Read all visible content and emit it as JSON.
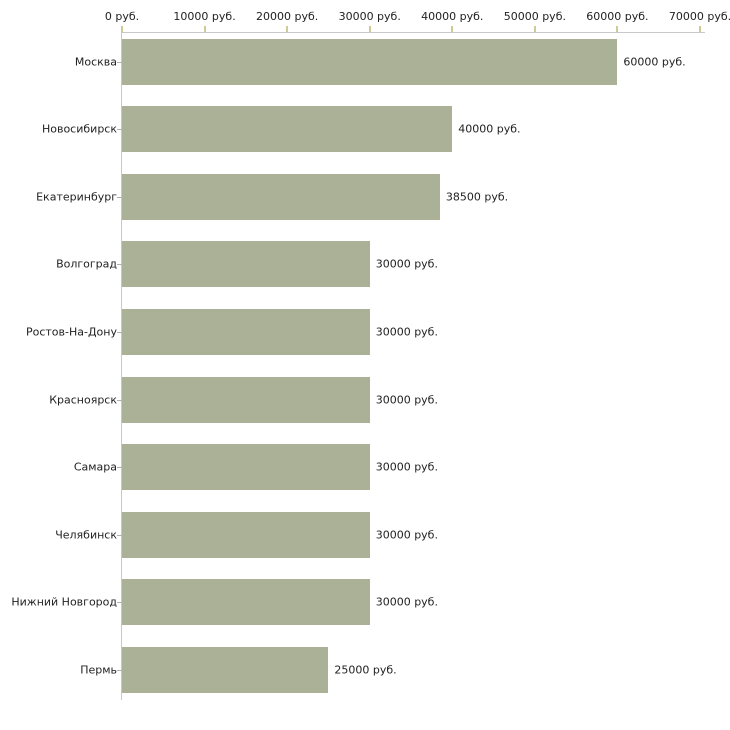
{
  "chart_data": {
    "type": "bar",
    "orientation": "horizontal",
    "categories": [
      "Москва",
      "Новосибирск",
      "Екатеринбург",
      "Волгоград",
      "Ростов-На-Дону",
      "Красноярск",
      "Самара",
      "Челябинск",
      "Нижний Новгород",
      "Пермь"
    ],
    "values": [
      60000,
      40000,
      38500,
      30000,
      30000,
      30000,
      30000,
      30000,
      30000,
      25000
    ],
    "value_labels": [
      "60000 руб.",
      "40000 руб.",
      "38500 руб.",
      "30000 руб.",
      "30000 руб.",
      "30000 руб.",
      "30000 руб.",
      "30000 руб.",
      "30000 руб.",
      "25000 руб."
    ],
    "x_ticks": [
      0,
      10000,
      20000,
      30000,
      40000,
      50000,
      60000,
      70000
    ],
    "x_tick_labels": [
      "0 руб.",
      "10000 руб.",
      "20000 руб.",
      "30000 руб.",
      "40000 руб.",
      "50000 руб.",
      "60000 руб.",
      "70000 руб."
    ],
    "xlim": [
      0,
      70000
    ],
    "xlabel": "",
    "ylabel": "",
    "title": "",
    "grid": false,
    "legend": false,
    "colors": {
      "bar_fill": "#abb197",
      "axis_line": "#c8c8c8",
      "x_tick_mark": "#cccc99",
      "y_tick_mark": "#b0b0b0",
      "text": "#222222",
      "background": "#ffffff"
    }
  }
}
